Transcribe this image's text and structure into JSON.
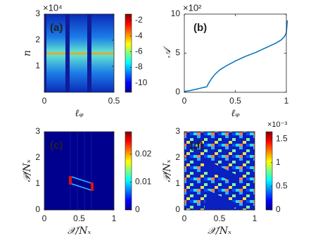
{
  "chart_data": [
    {
      "type": "heatmap",
      "label": "(a)",
      "xlabel": "ℓᵩ",
      "ylabel": "n",
      "y_multiplier": "×10⁴",
      "xlim": [
        0,
        0.5
      ],
      "xticks": [
        0,
        0.5
      ],
      "ylim": [
        0,
        3
      ],
      "yticks": [
        1,
        2,
        3
      ],
      "clim": [
        -11.2,
        -1.2
      ],
      "cticks": [
        -2,
        -4,
        -6,
        -8,
        -10
      ]
    },
    {
      "type": "line",
      "label": "(b)",
      "xlabel": "ℓᵩ",
      "ylabel": "𝒜",
      "y_multiplier": "×10²",
      "xlim": [
        0,
        1
      ],
      "xticks": [
        0,
        0.5,
        1
      ],
      "ylim": [
        0,
        10
      ],
      "yticks": [
        0,
        5,
        10
      ],
      "color": "#0072bd",
      "x": [
        0,
        0.05,
        0.1,
        0.15,
        0.2,
        0.22,
        0.24,
        0.27,
        0.3,
        0.35,
        0.4,
        0.5,
        0.6,
        0.7,
        0.8,
        0.9,
        0.95,
        0.98,
        1.0,
        1.01
      ],
      "values": [
        0.1,
        0.2,
        0.35,
        0.5,
        0.65,
        0.7,
        1.2,
        1.8,
        2.3,
        2.9,
        3.3,
        4.0,
        4.6,
        5.1,
        5.7,
        6.3,
        6.7,
        7.1,
        7.6,
        9.2
      ]
    },
    {
      "type": "heatmap",
      "label": "(c)",
      "xlabel": "𝒳/Nₓ",
      "ylabel": "𝒫/Nₓ",
      "xlim": [
        0,
        1
      ],
      "xticks": [
        0,
        0.5,
        1
      ],
      "ylim": [
        0,
        3
      ],
      "yticks": [
        0,
        1,
        2,
        3
      ],
      "clim": [
        0,
        0.028
      ],
      "cticks": [
        0,
        0.01,
        0.02
      ]
    },
    {
      "type": "heatmap",
      "label": "(d)",
      "xlabel": "𝒳/Nₓ",
      "ylabel": "𝒫/Nₓ",
      "c_multiplier": "×10⁻³",
      "xlim": [
        0,
        1
      ],
      "xticks": [
        0,
        0.5,
        1
      ],
      "ylim": [
        0,
        3
      ],
      "yticks": [
        0,
        1,
        2,
        3
      ],
      "clim": [
        0,
        1.65
      ],
      "cticks": [
        0,
        0.5,
        1,
        1.5
      ]
    }
  ]
}
